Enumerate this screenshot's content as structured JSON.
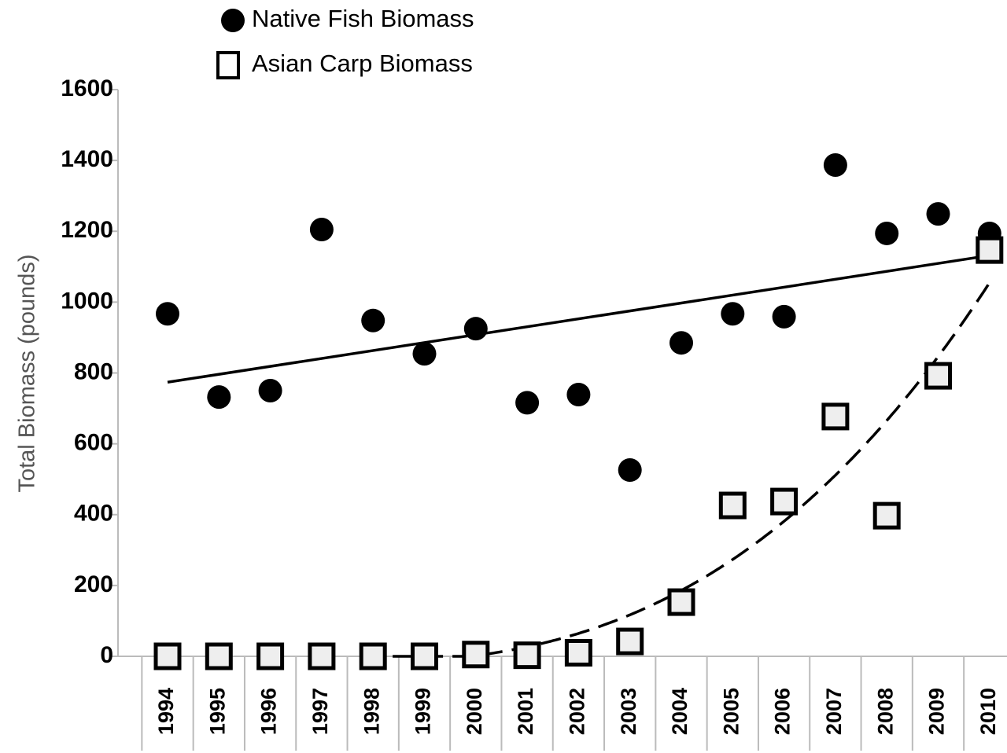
{
  "chart_data": {
    "type": "scatter",
    "y_label": "Total Biomass (pounds)",
    "categories": [
      "1994",
      "1995",
      "1996",
      "1997",
      "1998",
      "1999",
      "2000",
      "2001",
      "2002",
      "2003",
      "2004",
      "2005",
      "2006",
      "2007",
      "2008",
      "2009",
      "2010"
    ],
    "series": [
      {
        "name": "Native Fish Biomass",
        "color": "#000000",
        "marker": "circle",
        "trendline": "linear",
        "values": [
          967,
          732,
          750,
          1205,
          948,
          854,
          925,
          716,
          739,
          526,
          885,
          967,
          959,
          1387,
          1194,
          1249,
          1194
        ]
      },
      {
        "name": "Asian Carp Biomass",
        "color": "#000000",
        "marker": "square",
        "trendline": "polynomial",
        "values": [
          0,
          0,
          0,
          0,
          0,
          0,
          5,
          3,
          10,
          42,
          153,
          426,
          437,
          677,
          397,
          792,
          1147
        ]
      }
    ],
    "ylim": [
      0,
      1600
    ],
    "yticks": [
      0,
      200,
      400,
      600,
      800,
      1000,
      1200,
      1400,
      1600
    ]
  }
}
